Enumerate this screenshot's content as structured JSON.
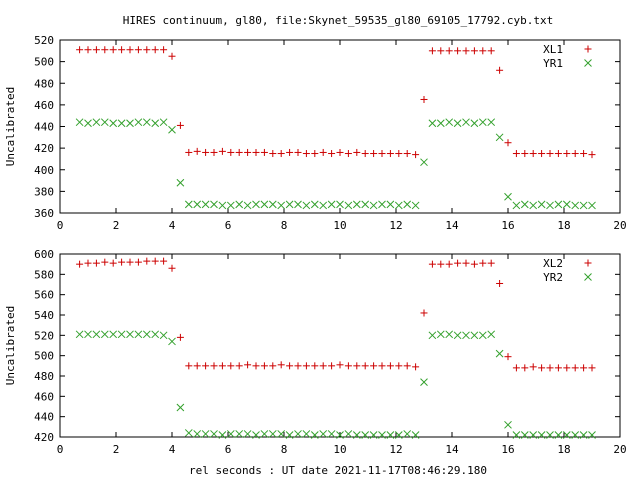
{
  "figure": {
    "title": "HIRES continuum, gl80, file:Skynet_59535_gl80_69105_17792.cyb.txt",
    "xlabel": "rel seconds : UT date 2021-11-17T08:46:29.180"
  },
  "colors": {
    "red": "#cc0000",
    "green": "#33a02c",
    "axis": "#000000"
  },
  "chart_data": [
    {
      "type": "scatter",
      "title": "HIRES continuum, gl80, file:Skynet_59535_gl80_69105_17792.cyb.txt",
      "xlabel": "",
      "ylabel": "Uncalibrated",
      "xlim": [
        0,
        20
      ],
      "ylim": [
        360,
        520
      ],
      "xticks": [
        0,
        2,
        4,
        6,
        8,
        10,
        12,
        14,
        16,
        18,
        20
      ],
      "yticks": [
        360,
        380,
        400,
        420,
        440,
        460,
        480,
        500,
        520
      ],
      "grid": false,
      "legend": "top-right",
      "series": [
        {
          "name": "XL1",
          "marker": "plus",
          "color": "#cc0000",
          "x": [
            0.7,
            1.0,
            1.3,
            1.6,
            1.9,
            2.2,
            2.5,
            2.8,
            3.1,
            3.4,
            3.7,
            4.0,
            4.3,
            4.6,
            4.9,
            5.2,
            5.5,
            5.8,
            6.1,
            6.4,
            6.7,
            7.0,
            7.3,
            7.6,
            7.9,
            8.2,
            8.5,
            8.8,
            9.1,
            9.4,
            9.7,
            10.0,
            10.3,
            10.6,
            10.9,
            11.2,
            11.5,
            11.8,
            12.1,
            12.4,
            12.7,
            13.0,
            13.3,
            13.6,
            13.9,
            14.2,
            14.5,
            14.8,
            15.1,
            15.4,
            15.7,
            16.0,
            16.3,
            16.6,
            16.9,
            17.2,
            17.5,
            17.8,
            18.1,
            18.4,
            18.7,
            19.0
          ],
          "y": [
            511,
            511,
            511,
            511,
            511,
            511,
            511,
            511,
            511,
            511,
            511,
            505,
            441,
            416,
            417,
            416,
            416,
            417,
            416,
            416,
            416,
            416,
            416,
            415,
            415,
            416,
            416,
            415,
            415,
            416,
            415,
            416,
            415,
            416,
            415,
            415,
            415,
            415,
            415,
            415,
            414,
            465,
            510,
            510,
            510,
            510,
            510,
            510,
            510,
            510,
            492,
            425,
            415,
            415,
            415,
            415,
            415,
            415,
            415,
            415,
            415,
            414
          ]
        },
        {
          "name": "YR1",
          "marker": "cross",
          "color": "#33a02c",
          "x": [
            0.7,
            1.0,
            1.3,
            1.6,
            1.9,
            2.2,
            2.5,
            2.8,
            3.1,
            3.4,
            3.7,
            4.0,
            4.3,
            4.6,
            4.9,
            5.2,
            5.5,
            5.8,
            6.1,
            6.4,
            6.7,
            7.0,
            7.3,
            7.6,
            7.9,
            8.2,
            8.5,
            8.8,
            9.1,
            9.4,
            9.7,
            10.0,
            10.3,
            10.6,
            10.9,
            11.2,
            11.5,
            11.8,
            12.1,
            12.4,
            12.7,
            13.0,
            13.3,
            13.6,
            13.9,
            14.2,
            14.5,
            14.8,
            15.1,
            15.4,
            15.7,
            16.0,
            16.3,
            16.6,
            16.9,
            17.2,
            17.5,
            17.8,
            18.1,
            18.4,
            18.7,
            19.0
          ],
          "y": [
            444,
            443,
            444,
            444,
            443,
            443,
            443,
            444,
            444,
            443,
            444,
            437,
            388,
            368,
            368,
            368,
            368,
            367,
            367,
            368,
            367,
            368,
            368,
            368,
            367,
            368,
            368,
            367,
            368,
            367,
            368,
            368,
            367,
            368,
            368,
            367,
            368,
            368,
            367,
            368,
            367,
            407,
            443,
            443,
            444,
            443,
            444,
            443,
            444,
            444,
            430,
            375,
            367,
            368,
            367,
            368,
            367,
            368,
            368,
            367,
            367,
            367
          ]
        }
      ]
    },
    {
      "type": "scatter",
      "title": "",
      "xlabel": "rel seconds : UT date 2021-11-17T08:46:29.180",
      "ylabel": "Uncalibrated",
      "xlim": [
        0,
        20
      ],
      "ylim": [
        420,
        600
      ],
      "xticks": [
        0,
        2,
        4,
        6,
        8,
        10,
        12,
        14,
        16,
        18,
        20
      ],
      "yticks": [
        420,
        440,
        460,
        480,
        500,
        520,
        540,
        560,
        580,
        600
      ],
      "grid": false,
      "legend": "top-right",
      "series": [
        {
          "name": "XL2",
          "marker": "plus",
          "color": "#cc0000",
          "x": [
            0.7,
            1.0,
            1.3,
            1.6,
            1.9,
            2.2,
            2.5,
            2.8,
            3.1,
            3.4,
            3.7,
            4.0,
            4.3,
            4.6,
            4.9,
            5.2,
            5.5,
            5.8,
            6.1,
            6.4,
            6.7,
            7.0,
            7.3,
            7.6,
            7.9,
            8.2,
            8.5,
            8.8,
            9.1,
            9.4,
            9.7,
            10.0,
            10.3,
            10.6,
            10.9,
            11.2,
            11.5,
            11.8,
            12.1,
            12.4,
            12.7,
            13.0,
            13.3,
            13.6,
            13.9,
            14.2,
            14.5,
            14.8,
            15.1,
            15.4,
            15.7,
            16.0,
            16.3,
            16.6,
            16.9,
            17.2,
            17.5,
            17.8,
            18.1,
            18.4,
            18.7,
            19.0
          ],
          "y": [
            590,
            591,
            591,
            592,
            591,
            592,
            592,
            592,
            593,
            593,
            593,
            586,
            518,
            490,
            490,
            490,
            490,
            490,
            490,
            490,
            491,
            490,
            490,
            490,
            491,
            490,
            490,
            490,
            490,
            490,
            490,
            491,
            490,
            490,
            490,
            490,
            490,
            490,
            490,
            490,
            489,
            542,
            590,
            590,
            590,
            591,
            591,
            590,
            591,
            591,
            571,
            499,
            488,
            488,
            489,
            488,
            488,
            488,
            488,
            488,
            488,
            488
          ]
        },
        {
          "name": "YR2",
          "marker": "cross",
          "color": "#33a02c",
          "x": [
            0.7,
            1.0,
            1.3,
            1.6,
            1.9,
            2.2,
            2.5,
            2.8,
            3.1,
            3.4,
            3.7,
            4.0,
            4.3,
            4.6,
            4.9,
            5.2,
            5.5,
            5.8,
            6.1,
            6.4,
            6.7,
            7.0,
            7.3,
            7.6,
            7.9,
            8.2,
            8.5,
            8.8,
            9.1,
            9.4,
            9.7,
            10.0,
            10.3,
            10.6,
            10.9,
            11.2,
            11.5,
            11.8,
            12.1,
            12.4,
            12.7,
            13.0,
            13.3,
            13.6,
            13.9,
            14.2,
            14.5,
            14.8,
            15.1,
            15.4,
            15.7,
            16.0,
            16.3,
            16.6,
            16.9,
            17.2,
            17.5,
            17.8,
            18.1,
            18.4,
            18.7,
            19.0
          ],
          "y": [
            521,
            521,
            521,
            521,
            521,
            521,
            521,
            521,
            521,
            521,
            520,
            514,
            449,
            424,
            423,
            423,
            423,
            422,
            423,
            423,
            423,
            422,
            423,
            423,
            423,
            422,
            423,
            423,
            422,
            423,
            423,
            422,
            423,
            422,
            422,
            422,
            422,
            422,
            422,
            423,
            422,
            474,
            520,
            521,
            521,
            520,
            520,
            520,
            520,
            521,
            502,
            432,
            422,
            422,
            422,
            422,
            422,
            422,
            422,
            422,
            422,
            422
          ]
        }
      ]
    }
  ]
}
